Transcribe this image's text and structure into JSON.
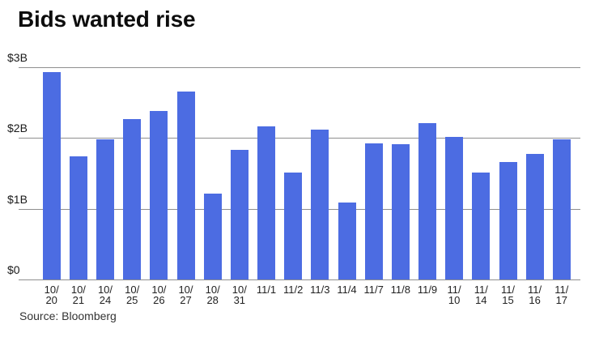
{
  "chart_data": {
    "type": "bar",
    "title": "Bids wanted rise",
    "source": "Source: Bloomberg",
    "categories": [
      "10/20",
      "10/21",
      "10/24",
      "10/25",
      "10/26",
      "10/27",
      "10/28",
      "10/31",
      "11/1",
      "11/2",
      "11/3",
      "11/4",
      "11/7",
      "11/8",
      "11/9",
      "11/10",
      "11/14",
      "11/15",
      "11/16",
      "11/17"
    ],
    "values": [
      2.93,
      1.74,
      1.98,
      2.27,
      2.38,
      2.66,
      1.21,
      1.83,
      2.16,
      1.51,
      2.12,
      1.09,
      1.92,
      1.91,
      2.21,
      2.02,
      1.51,
      1.66,
      1.77,
      1.98
    ],
    "unit_hint": "values in billions of dollars",
    "yticks": [
      {
        "label": "$3B",
        "value": 3
      },
      {
        "label": "$2B",
        "value": 2
      },
      {
        "label": "$1B",
        "value": 1
      },
      {
        "label": "$0",
        "value": 0
      }
    ],
    "ylim": [
      0,
      3
    ],
    "xlabel": "",
    "ylabel": "",
    "grid": "horizontal",
    "legend": "none",
    "bar_color": "#4c6ce2",
    "gridline_color": "#8f8f8f",
    "title_color": "#0d0d0d",
    "text_color": "#222222"
  }
}
